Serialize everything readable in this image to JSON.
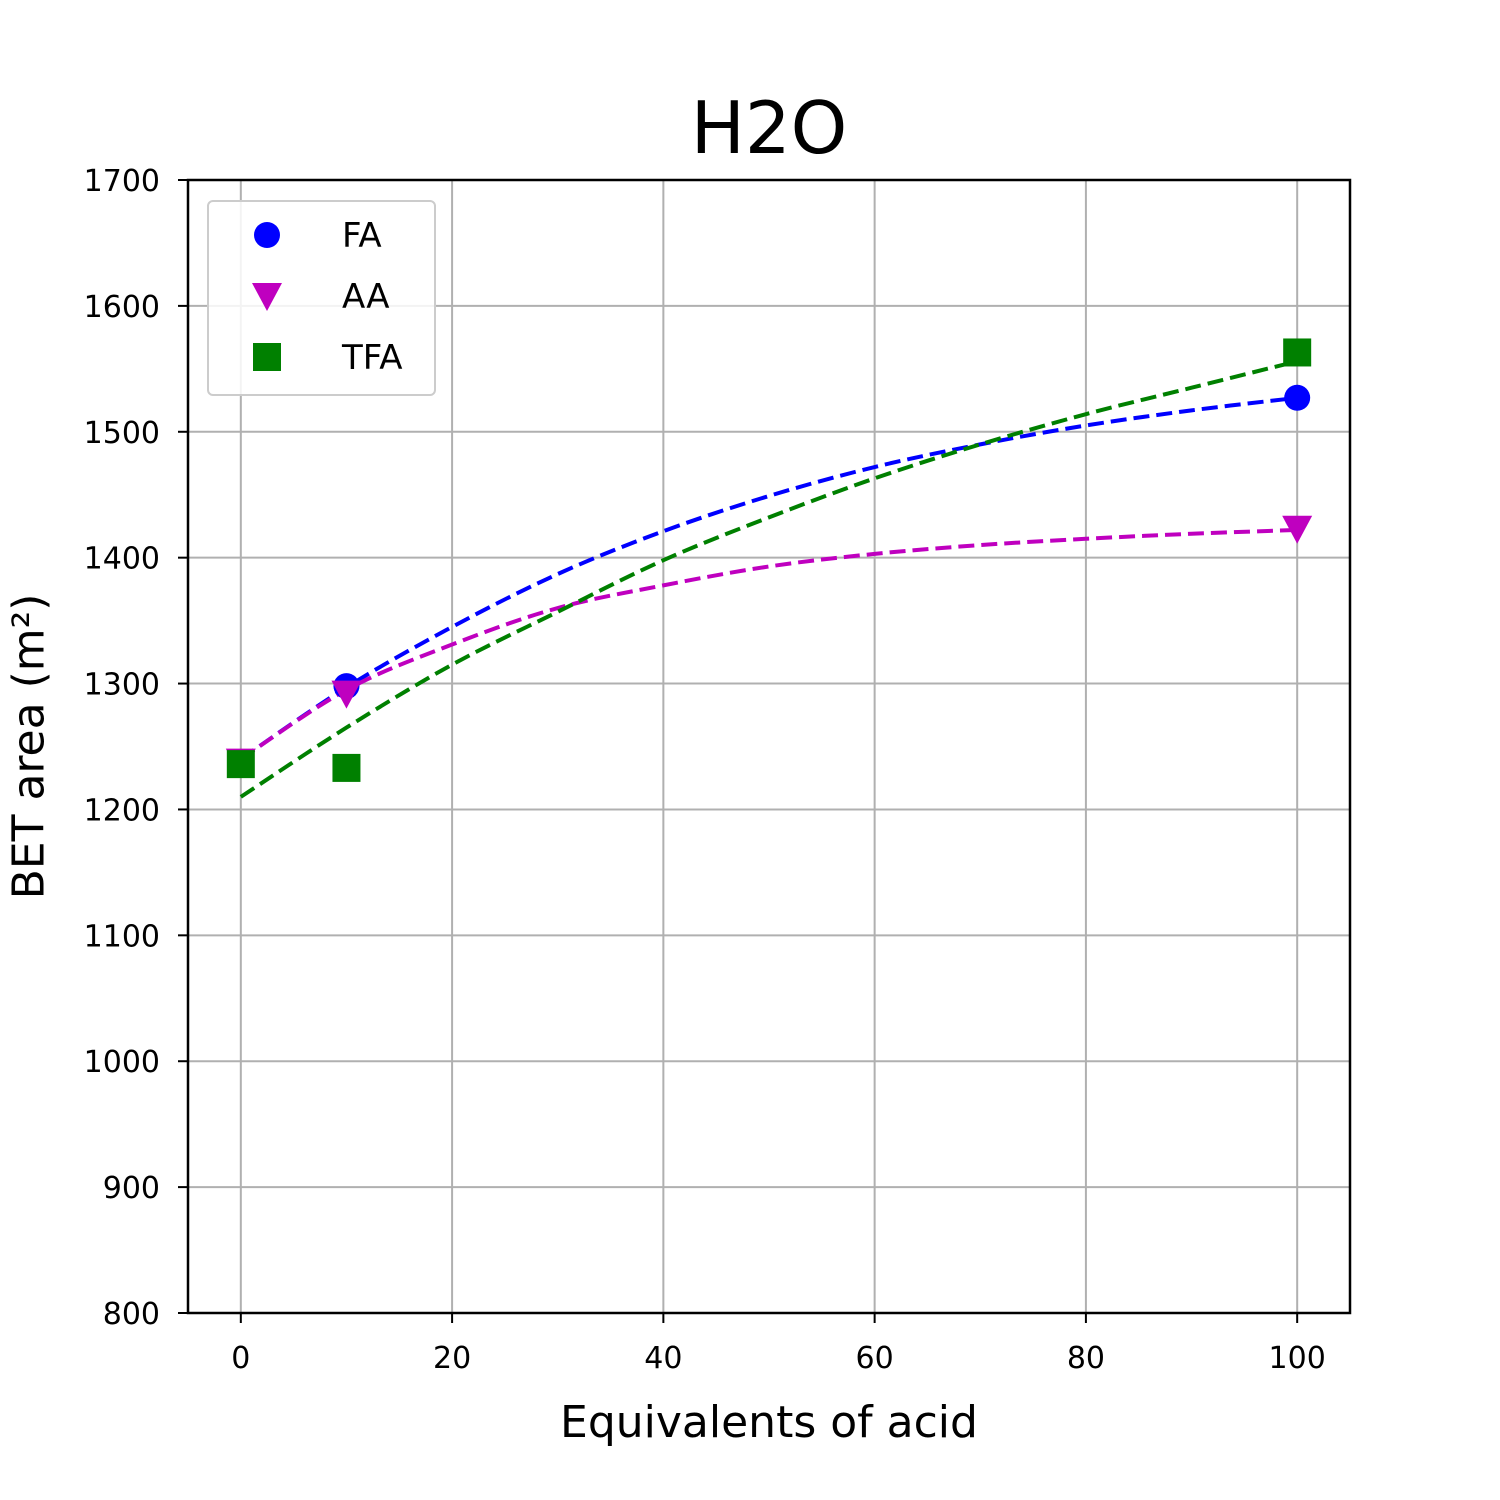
{
  "chart_data": {
    "type": "scatter",
    "title": "H2O",
    "xlabel": "Equivalents of acid",
    "ylabel": "BET area (m²)",
    "xlim": [
      -5,
      105
    ],
    "ylim": [
      800,
      1700
    ],
    "xticks": [
      0,
      20,
      40,
      60,
      80,
      100
    ],
    "yticks": [
      800,
      900,
      1000,
      1100,
      1200,
      1300,
      1400,
      1500,
      1600,
      1700
    ],
    "grid": true,
    "legend_position": "upper-left",
    "series": [
      {
        "name": "FA",
        "marker": "circle",
        "color": "#0000ff",
        "x": [
          0,
          10,
          100
        ],
        "y": [
          1237,
          1298,
          1527
        ],
        "fit": {
          "x": [
            0,
            10,
            20,
            30,
            40,
            50,
            60,
            70,
            80,
            90,
            100
          ],
          "y": [
            1240,
            1297,
            1345,
            1387,
            1421,
            1449,
            1472,
            1490,
            1505,
            1517,
            1527
          ]
        }
      },
      {
        "name": "AA",
        "marker": "triangle-down",
        "color": "#bf00bf",
        "x": [
          0,
          10,
          100
        ],
        "y": [
          1238,
          1292,
          1423
        ],
        "fit": {
          "x": [
            0,
            10,
            20,
            30,
            40,
            50,
            60,
            70,
            80,
            90,
            100
          ],
          "y": [
            1240,
            1295,
            1331,
            1360,
            1378,
            1393,
            1403,
            1410,
            1415,
            1419,
            1422
          ]
        }
      },
      {
        "name": "TFA",
        "marker": "square",
        "color": "#008000",
        "x": [
          0,
          10,
          100
        ],
        "y": [
          1236,
          1233,
          1563
        ],
        "fit": {
          "x": [
            0,
            10,
            20,
            30,
            40,
            50,
            60,
            70,
            80,
            90,
            100
          ],
          "y": [
            1210,
            1265,
            1315,
            1357,
            1398,
            1432,
            1463,
            1490,
            1514,
            1535,
            1556
          ]
        }
      }
    ]
  }
}
